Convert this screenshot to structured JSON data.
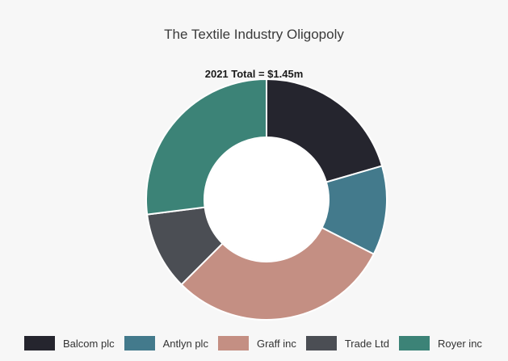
{
  "chart_data": {
    "type": "pie",
    "title": "The Textile Industry Oligopoly",
    "subtitle": "2021 Total = $1.45m",
    "categories": [
      "Balcom plc",
      "Antlyn plc",
      "Graff inc",
      "Trade Ltd",
      "Royer inc"
    ],
    "values": [
      20.5,
      12.0,
      30.0,
      10.5,
      27.0
    ],
    "colors": [
      "#25252e",
      "#437a8c",
      "#c48f83",
      "#4b4e54",
      "#3c8377"
    ],
    "legend_position": "bottom"
  }
}
